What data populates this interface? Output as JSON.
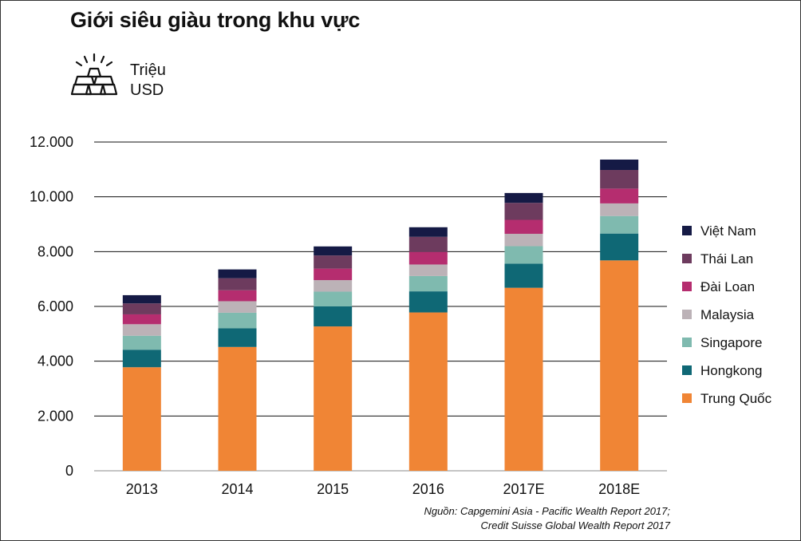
{
  "title": "Giới siêu giàu trong khu vực",
  "unit": {
    "line1": "Triệu",
    "line2": "USD",
    "icon": "gold-bars-icon"
  },
  "source": {
    "line1": "Nguồn: Capgemini Asia - Pacific Wealth Report 2017;",
    "line2": "Credit Suisse Global Wealth Report 2017"
  },
  "chart_data": {
    "type": "bar",
    "stacked": true,
    "title": "Giới siêu giàu trong khu vực",
    "xlabel": "",
    "ylabel": "Triệu USD",
    "ylim": [
      0,
      12000
    ],
    "yticks": [
      0,
      2000,
      4000,
      6000,
      8000,
      10000,
      12000
    ],
    "ytick_labels": [
      "0",
      "2.000",
      "4.000",
      "6.000",
      "8.000",
      "10.000",
      "12.000"
    ],
    "grid": true,
    "legend_position": "right",
    "categories": [
      "2013",
      "2014",
      "2015",
      "2016",
      "2017E",
      "2018E"
    ],
    "series": [
      {
        "name": "Trung Quốc",
        "color": "#F08535",
        "values": [
          3780,
          4520,
          5270,
          5780,
          6680,
          7680
        ]
      },
      {
        "name": "Hongkong",
        "color": "#0F6875",
        "values": [
          640,
          680,
          730,
          770,
          880,
          980
        ]
      },
      {
        "name": "Singapore",
        "color": "#7FBAAF",
        "values": [
          510,
          570,
          540,
          560,
          640,
          640
        ]
      },
      {
        "name": "Malaysia",
        "color": "#BCB2B7",
        "values": [
          420,
          420,
          420,
          420,
          450,
          460
        ]
      },
      {
        "name": "Đài Loan",
        "color": "#B52D6F",
        "values": [
          360,
          400,
          420,
          460,
          510,
          540
        ]
      },
      {
        "name": "Thái Lan",
        "color": "#6D3B5E",
        "values": [
          400,
          440,
          480,
          550,
          620,
          680
        ]
      },
      {
        "name": "Việt Nam",
        "color": "#151A45",
        "values": [
          300,
          320,
          330,
          350,
          360,
          380
        ]
      }
    ]
  }
}
